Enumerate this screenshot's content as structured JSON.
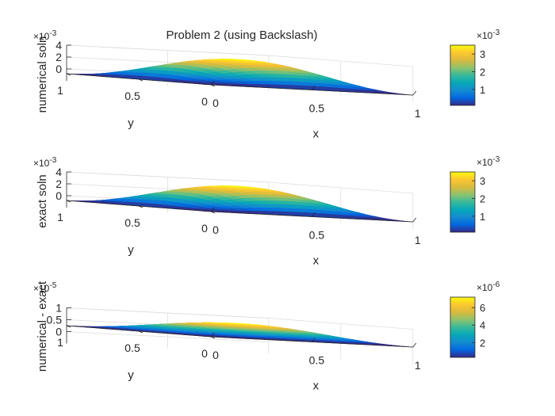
{
  "figure_title": "Problem 2 (using Backslash)",
  "colors": {
    "axis": "#262626",
    "grid": "#dedede",
    "surface_min": "#3e26a8",
    "surface_max": "#f9fb0e"
  },
  "chart_data": [
    {
      "type": "surface",
      "title": "Problem 2 (using Backslash)",
      "xlabel": "x",
      "ylabel": "y",
      "zlabel": "numerical soln",
      "xlim": [
        0,
        1
      ],
      "ylim": [
        0,
        1
      ],
      "zlim": [
        -0.001,
        0.004
      ],
      "x_ticks": [
        "0",
        "0.5",
        "1"
      ],
      "y_ticks": [
        "0",
        "0.5",
        "1"
      ],
      "z_ticks": [
        "0",
        "2",
        "4"
      ],
      "z_multiplier": "×10^-3",
      "z_peak": 0.0035,
      "colorbar": {
        "range": [
          0.0001,
          0.0035
        ],
        "ticks": [
          {
            "value": 0.001,
            "label": "1"
          },
          {
            "value": 0.002,
            "label": "2"
          },
          {
            "value": 0.003,
            "label": "3"
          }
        ],
        "multiplier": "×10^-3"
      },
      "grid": true
    },
    {
      "type": "surface",
      "title": "",
      "xlabel": "x",
      "ylabel": "y",
      "zlabel": "exact soln",
      "xlim": [
        0,
        1
      ],
      "ylim": [
        0,
        1
      ],
      "zlim": [
        -0.001,
        0.004
      ],
      "x_ticks": [
        "0",
        "0.5",
        "1"
      ],
      "y_ticks": [
        "0",
        "0.5",
        "1"
      ],
      "z_ticks": [
        "0",
        "2",
        "4"
      ],
      "z_multiplier": "×10^-3",
      "z_peak": 0.0035,
      "colorbar": {
        "range": [
          0.0001,
          0.0035
        ],
        "ticks": [
          {
            "value": 0.001,
            "label": "1"
          },
          {
            "value": 0.002,
            "label": "2"
          },
          {
            "value": 0.003,
            "label": "3"
          }
        ],
        "multiplier": "×10^-3"
      },
      "grid": true
    },
    {
      "type": "surface",
      "title": "",
      "xlabel": "x",
      "ylabel": "y",
      "zlabel": "numerical - exact",
      "xlim": [
        0,
        1
      ],
      "ylim": [
        0,
        1
      ],
      "zlim": [
        -1e-05,
        1e-05
      ],
      "x_ticks": [
        "0",
        "0.5",
        "1"
      ],
      "y_ticks": [
        "0",
        "0.5",
        "1"
      ],
      "z_ticks": [
        "0",
        "0.5",
        "1"
      ],
      "z_multiplier": "×10^-5",
      "z_peak": 7.2e-06,
      "colorbar": {
        "range": [
          3e-07,
          7.2e-06
        ],
        "ticks": [
          {
            "value": 2e-06,
            "label": "2"
          },
          {
            "value": 4e-06,
            "label": "4"
          },
          {
            "value": 6e-06,
            "label": "6"
          }
        ],
        "multiplier": "×10^-6"
      },
      "grid": true
    }
  ]
}
